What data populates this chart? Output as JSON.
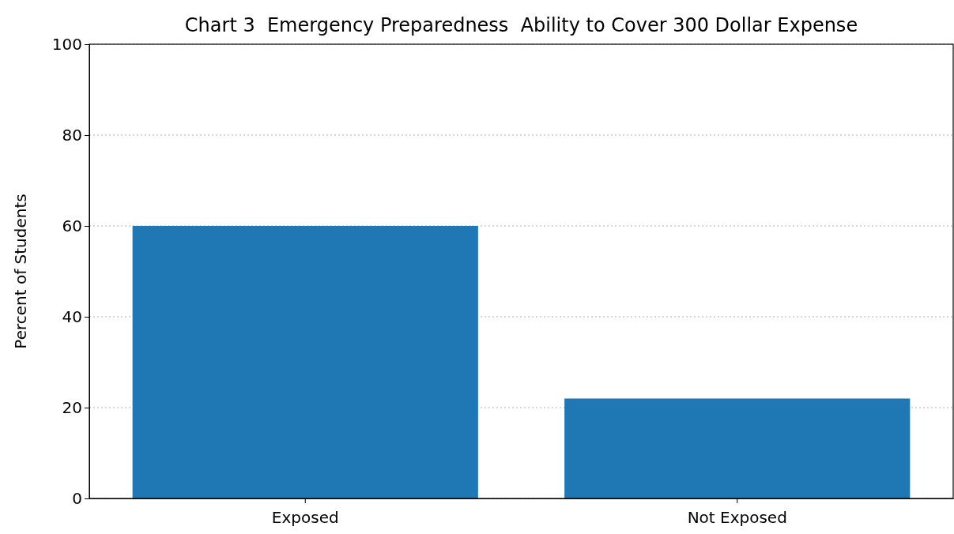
{
  "chart_data": {
    "type": "bar",
    "title": "Chart 3  Emergency Preparedness  Ability to Cover 300 Dollar Expense",
    "ylabel": "Percent of Students",
    "categories": [
      "Exposed",
      "Not Exposed"
    ],
    "values": [
      60,
      22
    ],
    "color": "#1f77b4",
    "ylim": [
      0,
      100
    ],
    "yticks": [
      0,
      20,
      40,
      60,
      80,
      100
    ],
    "grid": "y"
  }
}
